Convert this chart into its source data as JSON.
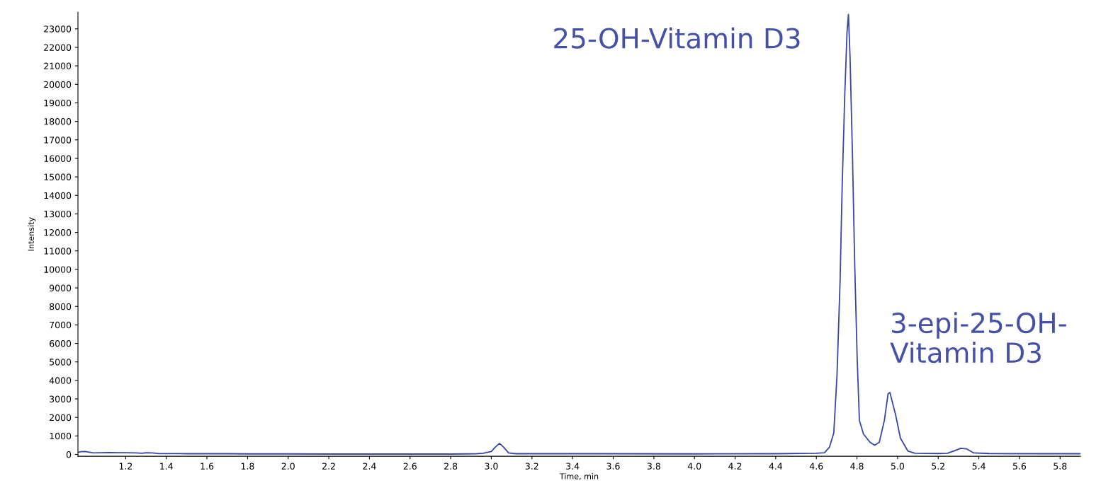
{
  "chart_data": {
    "type": "line",
    "xlabel": "Time, min",
    "ylabel": "Intensity",
    "x": [
      0.965,
      0.98,
      1.0,
      1.02,
      1.04,
      1.08,
      1.12,
      1.16,
      1.2,
      1.25,
      1.28,
      1.3,
      1.33,
      1.36,
      1.5,
      1.7,
      1.8,
      1.9,
      2.0,
      2.2,
      2.5,
      2.8,
      2.93,
      2.96,
      3.0,
      3.02,
      3.04,
      3.06,
      3.085,
      3.12,
      3.5,
      4.0,
      4.4,
      4.6,
      4.64,
      4.665,
      4.686,
      4.702,
      4.717,
      4.727,
      4.74,
      4.751,
      4.758,
      4.766,
      4.778,
      4.789,
      4.801,
      4.812,
      4.832,
      4.864,
      4.887,
      4.91,
      4.935,
      4.953,
      4.962,
      4.99,
      5.014,
      5.05,
      5.085,
      5.2,
      5.245,
      5.28,
      5.31,
      5.34,
      5.375,
      5.45,
      5.7,
      5.9
    ],
    "series": [
      {
        "color": "#3a46a6",
        "values": [
          110,
          150,
          160,
          120,
          80,
          90,
          100,
          90,
          90,
          80,
          60,
          90,
          80,
          50,
          40,
          40,
          30,
          30,
          30,
          20,
          20,
          20,
          40,
          60,
          160,
          400,
          600,
          400,
          80,
          40,
          40,
          30,
          40,
          60,
          90,
          400,
          1170,
          4350,
          9400,
          14430,
          19450,
          22800,
          23780,
          21470,
          16100,
          10240,
          5200,
          1840,
          1100,
          660,
          500,
          660,
          1840,
          3270,
          3350,
          2150,
          880,
          190,
          60,
          50,
          60,
          200,
          330,
          300,
          80,
          50,
          40,
          40
        ]
      }
    ],
    "xlim": [
      0.965,
      5.9
    ],
    "ylim": [
      -100,
      23900
    ],
    "xticks": [
      1.2,
      1.4,
      1.6,
      1.8,
      {
        "value": 2,
        "label": "2.0"
      },
      2.2,
      2.4,
      2.6,
      2.8,
      {
        "value": 3,
        "label": "3.0"
      },
      3.2,
      3.4,
      3.6,
      3.8,
      {
        "value": 4,
        "label": "4.0"
      },
      4.2,
      4.4,
      4.6,
      4.8,
      {
        "value": 5,
        "label": "5.0"
      },
      5.2,
      5.4,
      5.6,
      5.8
    ],
    "yticks": [
      0,
      1000,
      2000,
      3000,
      4000,
      5000,
      6000,
      7000,
      8000,
      9000,
      10000,
      11000,
      12000,
      13000,
      14000,
      15000,
      16000,
      17000,
      18000,
      19000,
      20000,
      21000,
      22000,
      23000
    ],
    "grid": false,
    "marker": "none",
    "line_style": "solid",
    "annotations": [
      {
        "text": "25-OH-Vitamin D3",
        "x": 4.758,
        "y": 23780
      },
      {
        "text": "3-epi-25-OH-\nVitamin D3",
        "x": 4.962,
        "y": 3350
      }
    ]
  }
}
